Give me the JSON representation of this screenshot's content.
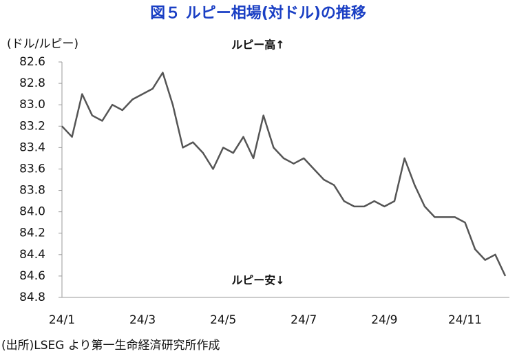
{
  "chart_data": {
    "type": "line",
    "title": "図５ ルピー相場(対ドル)の推移",
    "y_label": "(ドル/ルピー)",
    "annotations": [
      "ルピー高↑",
      "ルピー安↓"
    ],
    "source": "(出所)LSEG より第一生命経済研究所作成",
    "categories": [
      "24/1",
      null,
      null,
      null,
      null,
      null,
      null,
      null,
      "24/3",
      null,
      null,
      null,
      null,
      null,
      null,
      null,
      "24/5",
      null,
      null,
      null,
      null,
      null,
      null,
      null,
      "24/7",
      null,
      null,
      null,
      null,
      null,
      null,
      null,
      "24/9",
      null,
      null,
      null,
      null,
      null,
      null,
      null,
      "24/11",
      null,
      null,
      null,
      null
    ],
    "values": [
      83.2,
      83.3,
      82.9,
      83.1,
      83.15,
      83.0,
      83.05,
      82.95,
      82.9,
      82.85,
      82.7,
      83.0,
      83.4,
      83.35,
      83.45,
      83.6,
      83.4,
      83.45,
      83.3,
      83.5,
      83.1,
      83.4,
      83.5,
      83.55,
      83.5,
      83.6,
      83.7,
      83.75,
      83.9,
      83.95,
      83.95,
      83.9,
      83.95,
      83.9,
      83.5,
      83.75,
      83.95,
      84.05,
      84.05,
      84.05,
      84.1,
      84.35,
      84.45,
      84.4,
      84.6
    ],
    "color": "#555555",
    "ylim": [
      82.6,
      84.8
    ],
    "y_inverted": true,
    "yticks": [
      82.6,
      82.8,
      {
        "value": 83,
        "label": "83.0"
      },
      83.2,
      83.4,
      83.6,
      83.8,
      {
        "value": 84,
        "label": "84.0"
      },
      84.2,
      84.4,
      84.6,
      84.8
    ],
    "grid": false
  }
}
